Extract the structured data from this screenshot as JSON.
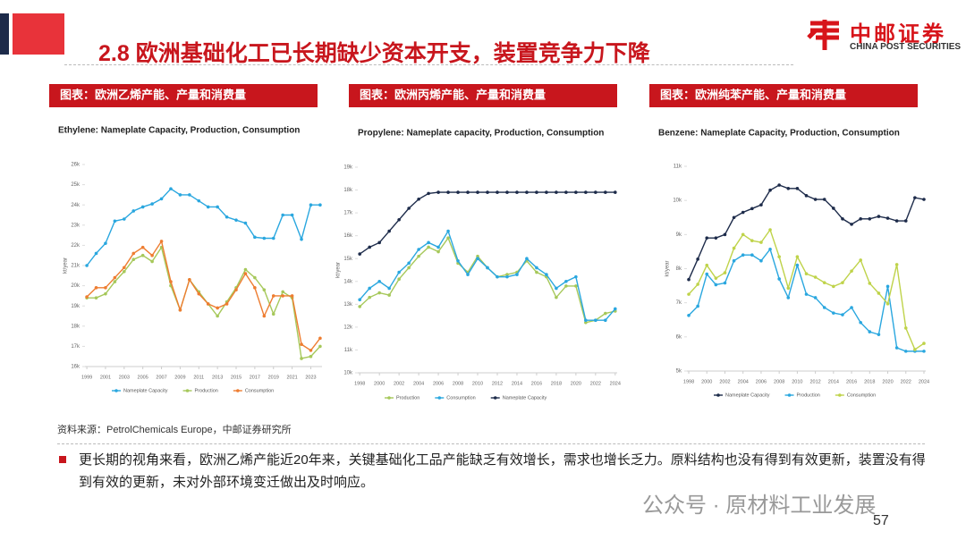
{
  "header": {
    "title": "2.8 欧洲基础化工已长期缺少资本开支，装置竞争力下降",
    "logo_cn": "中邮证券",
    "logo_en": "CHINA POST SECURITIES"
  },
  "chart_data": [
    {
      "type": "line",
      "label": "图表：欧洲乙烯产能、产量和消费量",
      "title": "Ethylene: Nameplate Capacity, Production, Consumption",
      "y_label": "kt/year",
      "x": [
        1999,
        2000,
        2001,
        2002,
        2003,
        2004,
        2005,
        2006,
        2007,
        2008,
        2009,
        2010,
        2011,
        2012,
        2013,
        2014,
        2015,
        2016,
        2017,
        2018,
        2019,
        2020,
        2021,
        2022,
        2023,
        2024
      ],
      "xlim": [
        1998.8,
        2024.2
      ],
      "xticks": [
        1999,
        2001,
        2003,
        2005,
        2007,
        2009,
        2011,
        2013,
        2015,
        2017,
        2019,
        2021,
        2023
      ],
      "ylim": [
        16000,
        26000
      ],
      "yticks": [
        {
          "value": 16000,
          "label": "16k"
        },
        {
          "value": 17000,
          "label": "17k"
        },
        {
          "value": 18000,
          "label": "18k"
        },
        {
          "value": 19000,
          "label": "19k"
        },
        {
          "value": 20000,
          "label": "20k"
        },
        {
          "value": 21000,
          "label": "21k"
        },
        {
          "value": 22000,
          "label": "22k"
        },
        {
          "value": 23000,
          "label": "23k"
        },
        {
          "value": 24000,
          "label": "24k"
        },
        {
          "value": 25000,
          "label": "25k"
        },
        {
          "value": 26000,
          "label": "26k"
        }
      ],
      "series": [
        {
          "name": "Nameplate Capacity",
          "color": "#2aa7df",
          "values": [
            21000,
            21600,
            22100,
            23200,
            23300,
            23700,
            23900,
            24050,
            24300,
            24800,
            24500,
            24500,
            24200,
            23900,
            23900,
            23400,
            23250,
            23100,
            22400,
            22350,
            22350,
            23500,
            23500,
            22300,
            24000,
            24000
          ]
        },
        {
          "name": "Production",
          "color": "#a6c85a",
          "values": [
            19400,
            19400,
            19600,
            20200,
            20700,
            21300,
            21500,
            21200,
            21900,
            20000,
            18800,
            20300,
            19700,
            19100,
            18500,
            19200,
            19900,
            20800,
            20400,
            19800,
            18600,
            19700,
            19400,
            16400,
            16500,
            17000
          ]
        },
        {
          "name": "Consumption",
          "color": "#ee7d31",
          "values": [
            19450,
            19900,
            19900,
            20400,
            20900,
            21600,
            21900,
            21500,
            22200,
            20200,
            18800,
            20300,
            19600,
            19100,
            18900,
            19100,
            19800,
            20600,
            19900,
            18500,
            19500,
            19500,
            19500,
            17100,
            16800,
            17400
          ]
        }
      ]
    },
    {
      "type": "line",
      "label": "图表：欧洲丙烯产能、产量和消费量",
      "title": "Propylene: Nameplate capacity, Production, Consumption",
      "y_label": "kt/year",
      "x": [
        1998,
        1999,
        2000,
        2001,
        2002,
        2003,
        2004,
        2005,
        2006,
        2007,
        2008,
        2009,
        2010,
        2011,
        2012,
        2013,
        2014,
        2015,
        2016,
        2017,
        2018,
        2019,
        2020,
        2021,
        2022,
        2023,
        2024
      ],
      "xlim": [
        1997.8,
        2024.2
      ],
      "xticks": [
        1998,
        2000,
        2002,
        2004,
        2006,
        2008,
        2010,
        2012,
        2014,
        2016,
        2018,
        2020,
        2022,
        2024
      ],
      "ylim": [
        10000,
        19000
      ],
      "yticks": [
        {
          "value": 10000,
          "label": "10k"
        },
        {
          "value": 11000,
          "label": "11k"
        },
        {
          "value": 12000,
          "label": "12k"
        },
        {
          "value": 13000,
          "label": "13k"
        },
        {
          "value": 14000,
          "label": "14k"
        },
        {
          "value": 15000,
          "label": "15k"
        },
        {
          "value": 16000,
          "label": "16k"
        },
        {
          "value": 17000,
          "label": "17k"
        },
        {
          "value": 18000,
          "label": "18k"
        },
        {
          "value": 19000,
          "label": "19k"
        }
      ],
      "series": [
        {
          "name": "Production",
          "color": "#a6c85a",
          "values": [
            12900,
            13300,
            13500,
            13400,
            14100,
            14600,
            15100,
            15500,
            15300,
            15900,
            14800,
            14400,
            15100,
            14600,
            14200,
            14300,
            14400,
            14900,
            14400,
            14200,
            13300,
            13800,
            13800,
            12200,
            12300,
            12600,
            12700
          ]
        },
        {
          "name": "Consumption",
          "color": "#2aa7df",
          "values": [
            13200,
            13700,
            14000,
            13700,
            14400,
            14800,
            15400,
            15700,
            15500,
            16200,
            14900,
            14300,
            15000,
            14600,
            14200,
            14200,
            14300,
            15000,
            14600,
            14300,
            13700,
            14000,
            14200,
            12300,
            12300,
            12300,
            12800
          ]
        },
        {
          "name": "Nameplate Capacity",
          "color": "#1d2b4a",
          "values": [
            15200,
            15500,
            15700,
            16200,
            16700,
            17200,
            17600,
            17850,
            17900,
            17900,
            17900,
            17900,
            17900,
            17900,
            17900,
            17900,
            17900,
            17900,
            17900,
            17900,
            17900,
            17900,
            17900,
            17900,
            17900,
            17900,
            17900
          ]
        }
      ]
    },
    {
      "type": "line",
      "label": "图表：欧洲纯苯产能、产量和消费量",
      "title": "Benzene: Nameplate Capacity, Production, Consumption",
      "y_label": "kt/year",
      "x": [
        1998,
        1999,
        2000,
        2001,
        2002,
        2003,
        2004,
        2005,
        2006,
        2007,
        2008,
        2009,
        2010,
        2011,
        2012,
        2013,
        2014,
        2015,
        2016,
        2017,
        2018,
        2019,
        2020,
        2021,
        2022,
        2023,
        2024
      ],
      "xlim": [
        1997.8,
        2024.2
      ],
      "xticks": [
        1998,
        2000,
        2002,
        2004,
        2006,
        2008,
        2010,
        2012,
        2014,
        2016,
        2018,
        2020,
        2022,
        2024
      ],
      "ylim": [
        5000,
        11000
      ],
      "yticks": [
        {
          "value": 5000,
          "label": "5k"
        },
        {
          "value": 6000,
          "label": "6k"
        },
        {
          "value": 7000,
          "label": "7k"
        },
        {
          "value": 8000,
          "label": "8k"
        },
        {
          "value": 9000,
          "label": "9k"
        },
        {
          "value": 10000,
          "label": "10k"
        },
        {
          "value": 11000,
          "label": "11k"
        }
      ],
      "series": [
        {
          "name": "Nameplate Capacity",
          "color": "#1d2b4a",
          "values": [
            7680,
            8280,
            8900,
            8900,
            9000,
            9500,
            9650,
            9760,
            9870,
            10300,
            10450,
            10350,
            10350,
            10140,
            10030,
            10030,
            9770,
            9460,
            9300,
            9460,
            9460,
            9530,
            9480,
            9400,
            9400,
            10080,
            10030
          ]
        },
        {
          "name": "Production",
          "color": "#2aa7df",
          "values": [
            6630,
            6900,
            7840,
            7530,
            7580,
            8230,
            8400,
            8400,
            8230,
            8570,
            7700,
            7150,
            8100,
            7250,
            7150,
            6860,
            6700,
            6650,
            6860,
            6420,
            6150,
            6070,
            7480,
            5680,
            5580,
            5580,
            5580
          ]
        },
        {
          "name": "Consumption",
          "color": "#bfd34a",
          "values": [
            7250,
            7540,
            8100,
            7720,
            7880,
            8600,
            9000,
            8820,
            8770,
            9140,
            8350,
            7430,
            8350,
            7850,
            7750,
            7590,
            7480,
            7590,
            7930,
            8250,
            7570,
            7280,
            6970,
            8120,
            6260,
            5630,
            5810
          ]
        }
      ]
    }
  ],
  "source": "资料来源：PetrolChemicals Europe，中邮证券研究所",
  "body": "更长期的视角来看，欧洲乙烯产能近20年来，关键基础化工品产能缺乏有效增长，需求也增长乏力。原料结构也没有得到有效更新，装置没有得到有效的更新，未对外部环境变迁做出及时响应。",
  "watermark": "公众号 · 原材料工业发展",
  "page": "57"
}
